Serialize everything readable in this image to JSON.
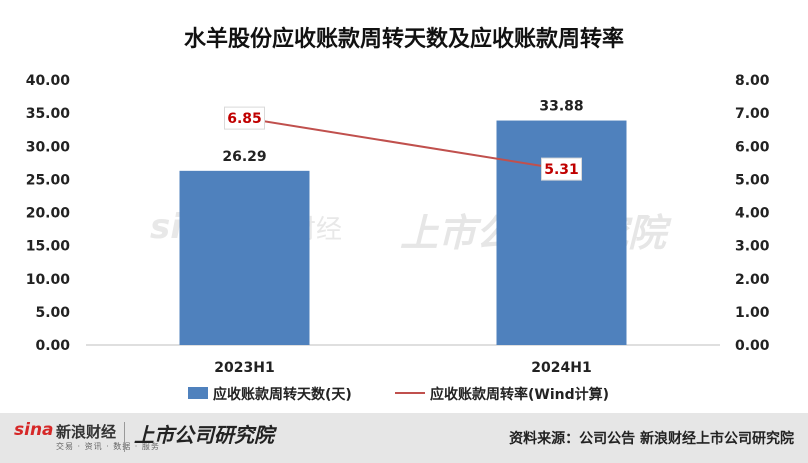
{
  "chart_data": {
    "type": "bar+line",
    "title": "水羊股份应收账款周转天数及应收账款周转率",
    "categories": [
      "2023H1",
      "2024H1"
    ],
    "series": [
      {
        "name": "应收账款周转天数(天)",
        "type": "bar",
        "axis": "left",
        "values": [
          26.29,
          33.88
        ],
        "labels": [
          "26.29",
          "33.88"
        ],
        "color": "#4f81bd"
      },
      {
        "name": "应收账款周转率(Wind计算)",
        "type": "line",
        "axis": "right",
        "values": [
          6.85,
          5.31
        ],
        "labels": [
          "6.85",
          "5.31"
        ],
        "color": "#c0504d"
      }
    ],
    "y_left": {
      "range": [
        0,
        40
      ],
      "ticks": [
        "0.00",
        "5.00",
        "10.00",
        "15.00",
        "20.00",
        "25.00",
        "30.00",
        "35.00",
        "40.00"
      ]
    },
    "y_right": {
      "range": [
        0,
        8
      ],
      "ticks": [
        "0.00",
        "1.00",
        "2.00",
        "3.00",
        "4.00",
        "5.00",
        "6.00",
        "7.00",
        "8.00"
      ]
    },
    "grid": false,
    "legend_position": "bottom"
  },
  "footer": {
    "brand_sina": "sina",
    "brand_sina_cn": "新浪财经",
    "brand_sina_sub": "交易 · 资讯 · 数据 · 服务",
    "brand_institute": "上市公司研究院",
    "source": "资料来源：公司公告 新浪财经上市公司研究院"
  }
}
